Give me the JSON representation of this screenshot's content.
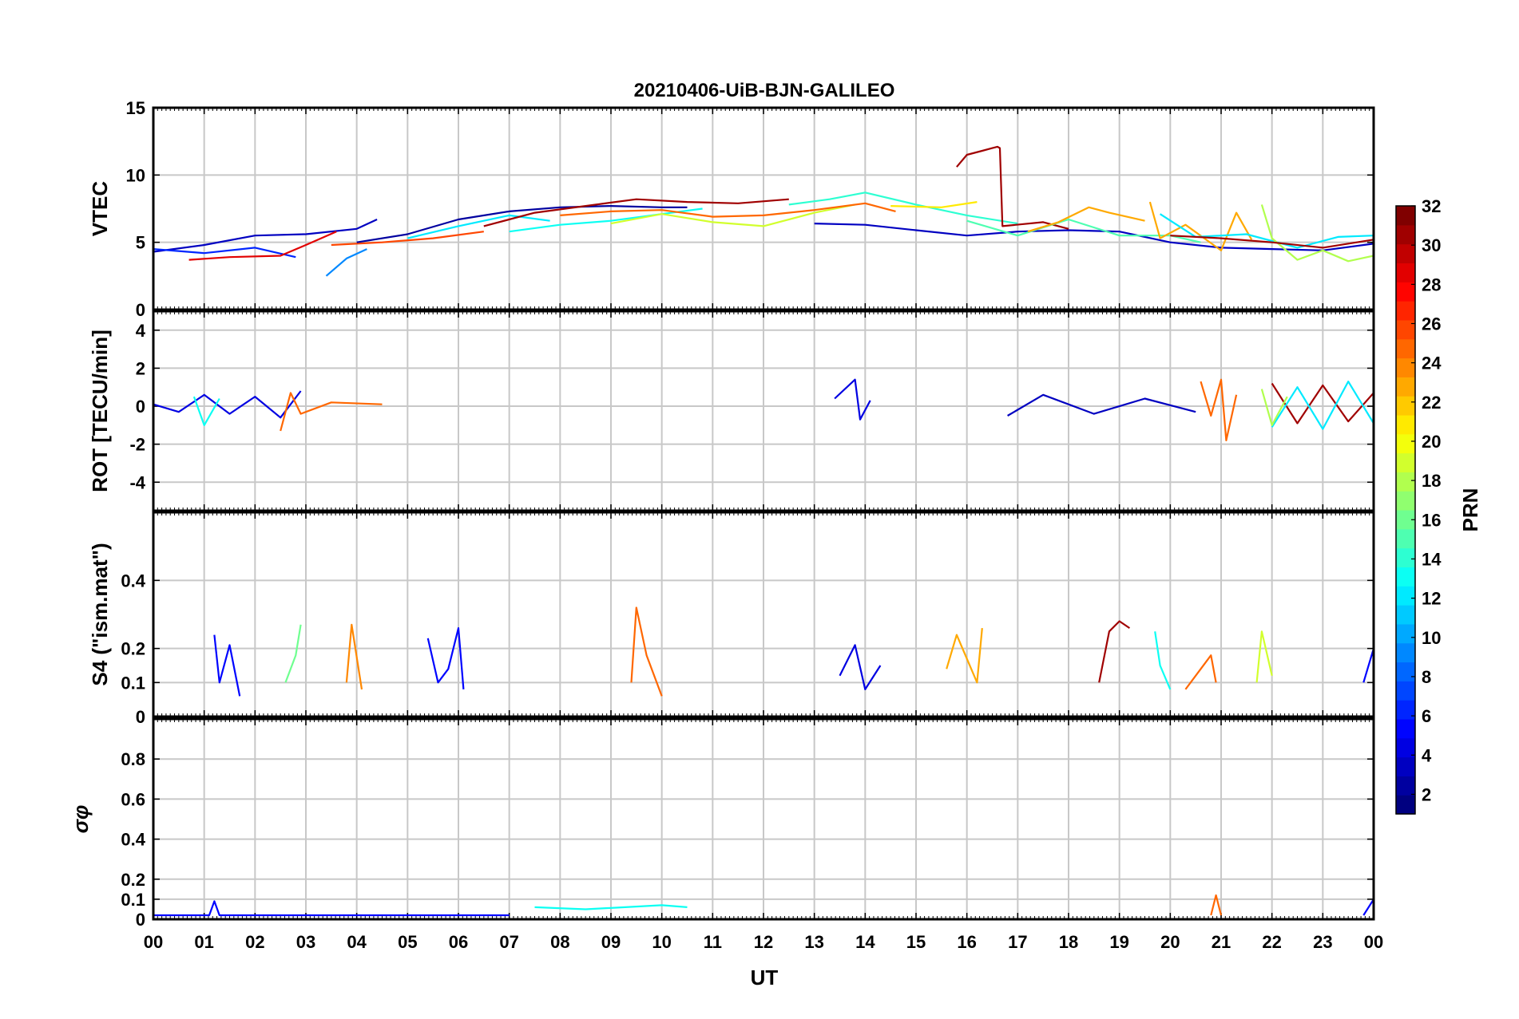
{
  "chart_data": {
    "type": "line",
    "title": "20210406-UiB-BJN-GALILEO",
    "xlabel": "UT",
    "x_tick_labels": [
      "00",
      "01",
      "02",
      "03",
      "04",
      "05",
      "06",
      "07",
      "08",
      "09",
      "10",
      "11",
      "12",
      "13",
      "14",
      "15",
      "16",
      "17",
      "18",
      "19",
      "20",
      "21",
      "22",
      "23",
      "00"
    ],
    "x_range_hours": [
      0,
      24
    ],
    "grid": true,
    "colormap": "jet",
    "panels": [
      {
        "id": "vtec",
        "ylabel": "VTEC",
        "ylim": [
          0,
          15
        ],
        "y_ticks": [
          0,
          5,
          10,
          15
        ],
        "y_tick_labels": [
          "0",
          "5",
          "10",
          "15"
        ],
        "series": [
          {
            "prn": 3,
            "x": [
              0.0,
              1.0,
              2.0,
              3.0,
              4.0,
              4.4
            ],
            "y": [
              4.3,
              4.8,
              5.5,
              5.6,
              6.0,
              6.7
            ]
          },
          {
            "prn": 6,
            "x": [
              0.0,
              1.0,
              2.0,
              2.8
            ],
            "y": [
              4.5,
              4.2,
              4.6,
              3.9
            ]
          },
          {
            "prn": 9,
            "x": [
              3.4,
              3.8,
              4.2
            ],
            "y": [
              2.5,
              3.8,
              4.5
            ]
          },
          {
            "prn": 29,
            "x": [
              0.7,
              1.5,
              2.5,
              3.0,
              3.6
            ],
            "y": [
              3.7,
              3.9,
              4.0,
              4.8,
              5.8
            ]
          },
          {
            "prn": 26,
            "x": [
              3.5,
              4.5,
              5.5,
              6.5
            ],
            "y": [
              4.8,
              5.0,
              5.3,
              5.8
            ]
          },
          {
            "prn": 2,
            "x": [
              4.0,
              5.0,
              6.0,
              7.0,
              8.0,
              9.0,
              10.0,
              10.5
            ],
            "y": [
              5.0,
              5.6,
              6.7,
              7.3,
              7.6,
              7.7,
              7.6,
              7.6
            ]
          },
          {
            "prn": 12,
            "x": [
              5.0,
              6.0,
              7.0,
              7.8
            ],
            "y": [
              5.3,
              6.2,
              7.0,
              6.6
            ]
          },
          {
            "prn": 31,
            "x": [
              6.5,
              7.5,
              8.5,
              9.5,
              10.5,
              11.5,
              12.5
            ],
            "y": [
              6.2,
              7.2,
              7.7,
              8.2,
              8.0,
              7.9,
              8.2
            ]
          },
          {
            "prn": 13,
            "x": [
              7.0,
              8.0,
              9.0,
              10.0,
              10.8
            ],
            "y": [
              5.8,
              6.3,
              6.6,
              7.1,
              7.5
            ]
          },
          {
            "prn": 19,
            "x": [
              9.0,
              10.0,
              11.0,
              12.0,
              13.0,
              13.8
            ],
            "y": [
              6.4,
              7.1,
              6.5,
              6.2,
              7.2,
              7.8
            ]
          },
          {
            "prn": 25,
            "x": [
              8.0,
              9.0,
              10.0,
              11.0,
              12.0,
              13.0,
              14.0,
              14.6
            ],
            "y": [
              7.0,
              7.3,
              7.4,
              6.9,
              7.0,
              7.4,
              7.9,
              7.3
            ]
          },
          {
            "prn": 14,
            "x": [
              12.5,
              13.3,
              14.0,
              15.0,
              16.0,
              17.0
            ],
            "y": [
              7.8,
              8.2,
              8.7,
              7.8,
              7.0,
              6.4
            ]
          },
          {
            "prn": 21,
            "x": [
              14.5,
              15.5,
              16.2
            ],
            "y": [
              7.7,
              7.6,
              8.0
            ]
          },
          {
            "prn": 3,
            "x": [
              13.0,
              14.0,
              15.0,
              16.0,
              17.0,
              18.0,
              19.0,
              20.0,
              21.0,
              22.0,
              23.0,
              24.0
            ],
            "y": [
              6.4,
              6.3,
              5.9,
              5.5,
              5.8,
              5.9,
              5.8,
              5.0,
              4.6,
              4.5,
              4.4,
              4.9
            ]
          },
          {
            "prn": 31,
            "x": [
              15.8,
              16.0,
              16.3,
              16.5,
              16.6,
              16.65,
              16.7,
              17.5,
              18.0
            ],
            "y": [
              10.6,
              11.5,
              11.8,
              12.0,
              12.1,
              12.0,
              6.2,
              6.5,
              6.0
            ]
          },
          {
            "prn": 15,
            "x": [
              16.0,
              17.0,
              18.0,
              19.0,
              20.0,
              20.6
            ],
            "y": [
              6.6,
              5.5,
              6.7,
              5.5,
              5.5,
              5.0
            ]
          },
          {
            "prn": 23,
            "x": [
              17.2,
              17.8,
              18.4,
              18.8,
              19.5
            ],
            "y": [
              5.8,
              6.5,
              7.6,
              7.2,
              6.6
            ]
          },
          {
            "prn": 23,
            "x": [
              19.6,
              19.8,
              20.3,
              21.0,
              21.3,
              21.6
            ],
            "y": [
              8.0,
              5.3,
              6.3,
              4.4,
              7.2,
              5.2
            ]
          },
          {
            "prn": 12,
            "x": [
              19.8,
              20.5,
              21.5,
              22.5,
              23.3,
              24.0
            ],
            "y": [
              7.1,
              5.4,
              5.6,
              4.6,
              5.4,
              5.5
            ]
          },
          {
            "prn": 18,
            "x": [
              21.8,
              22.0,
              22.5,
              23.0,
              23.5,
              24.0
            ],
            "y": [
              7.8,
              5.3,
              3.7,
              4.4,
              3.6,
              4.0
            ]
          },
          {
            "prn": 31,
            "x": [
              20.0,
              21.0,
              22.0,
              23.0,
              24.0
            ],
            "y": [
              5.5,
              5.3,
              5.0,
              4.6,
              5.2
            ]
          }
        ]
      },
      {
        "id": "rot",
        "ylabel": "ROT [TECU/min]",
        "ylim": [
          -5.5,
          5
        ],
        "y_ticks": [
          -4,
          -2,
          0,
          2,
          4
        ],
        "y_tick_labels": [
          "-4",
          "-2",
          "0",
          "2",
          "4"
        ],
        "series": [
          {
            "prn": 4,
            "x": [
              0.0,
              0.5,
              1.0,
              1.5,
              2.0,
              2.5,
              2.9
            ],
            "y": [
              0.1,
              -0.3,
              0.6,
              -0.4,
              0.5,
              -0.6,
              0.8
            ]
          },
          {
            "prn": 25,
            "x": [
              2.5,
              2.7,
              2.9,
              3.5,
              4.5
            ],
            "y": [
              -1.3,
              0.7,
              -0.4,
              0.2,
              0.1
            ]
          },
          {
            "prn": 13,
            "x": [
              0.8,
              1.0,
              1.3
            ],
            "y": [
              0.5,
              -1.0,
              0.4
            ]
          },
          {
            "prn": 4,
            "x": [
              13.4,
              13.8,
              13.9,
              14.1
            ],
            "y": [
              0.4,
              1.4,
              -0.7,
              0.3
            ]
          },
          {
            "prn": 3,
            "x": [
              16.8,
              17.5,
              18.5,
              19.5,
              20.5
            ],
            "y": [
              -0.5,
              0.6,
              -0.4,
              0.4,
              -0.3
            ]
          },
          {
            "prn": 25,
            "x": [
              20.6,
              20.8,
              21.0,
              21.1,
              21.3
            ],
            "y": [
              1.3,
              -0.5,
              1.4,
              -1.8,
              0.6
            ]
          },
          {
            "prn": 31,
            "x": [
              22.0,
              22.5,
              23.0,
              23.5,
              24.0
            ],
            "y": [
              1.2,
              -0.9,
              1.1,
              -0.8,
              0.7
            ]
          },
          {
            "prn": 12,
            "x": [
              22.0,
              22.5,
              23.0,
              23.5,
              24.0
            ],
            "y": [
              -1.1,
              1.0,
              -1.2,
              1.3,
              -0.9
            ]
          },
          {
            "prn": 18,
            "x": [
              21.8,
              22.0,
              22.3
            ],
            "y": [
              0.9,
              -1.0,
              0.5
            ]
          }
        ]
      },
      {
        "id": "s4",
        "ylabel": "S4 (\"ism.mat\")",
        "ylim": [
          0,
          0.6
        ],
        "y_ticks": [
          0,
          0.1,
          0.2,
          0.4
        ],
        "y_tick_labels": [
          "0",
          "0.1",
          "0.2",
          "0.4"
        ],
        "series": [
          {
            "prn": 5,
            "x": [
              1.2,
              1.3,
              1.5,
              1.7
            ],
            "y": [
              0.24,
              0.1,
              0.21,
              0.06
            ]
          },
          {
            "prn": 16,
            "x": [
              2.6,
              2.8,
              2.9
            ],
            "y": [
              0.1,
              0.18,
              0.27
            ]
          },
          {
            "prn": 24,
            "x": [
              3.8,
              3.9,
              4.1
            ],
            "y": [
              0.1,
              0.27,
              0.08
            ]
          },
          {
            "prn": 5,
            "x": [
              5.4,
              5.6,
              5.8,
              6.0,
              6.1
            ],
            "y": [
              0.23,
              0.1,
              0.14,
              0.26,
              0.08
            ]
          },
          {
            "prn": 25,
            "x": [
              9.4,
              9.5,
              9.7,
              10.0
            ],
            "y": [
              0.1,
              0.32,
              0.18,
              0.06
            ]
          },
          {
            "prn": 4,
            "x": [
              13.5,
              13.8,
              14.0,
              14.3
            ],
            "y": [
              0.12,
              0.21,
              0.08,
              0.15
            ]
          },
          {
            "prn": 23,
            "x": [
              15.6,
              15.8,
              16.2,
              16.3
            ],
            "y": [
              0.14,
              0.24,
              0.1,
              0.26
            ]
          },
          {
            "prn": 31,
            "x": [
              18.6,
              18.8,
              19.0,
              19.2
            ],
            "y": [
              0.1,
              0.25,
              0.28,
              0.26
            ]
          },
          {
            "prn": 13,
            "x": [
              19.7,
              19.8,
              20.0
            ],
            "y": [
              0.25,
              0.15,
              0.08
            ]
          },
          {
            "prn": 25,
            "x": [
              20.3,
              20.6,
              20.8,
              20.9
            ],
            "y": [
              0.08,
              0.14,
              0.18,
              0.1
            ]
          },
          {
            "prn": 19,
            "x": [
              21.7,
              21.8,
              22.0
            ],
            "y": [
              0.1,
              0.25,
              0.12
            ]
          },
          {
            "prn": 5,
            "x": [
              23.8,
              24.0
            ],
            "y": [
              0.1,
              0.2
            ]
          }
        ]
      },
      {
        "id": "sigma_phi",
        "ylabel": "σφ",
        "ylim": [
          0,
          1
        ],
        "y_ticks": [
          0,
          0.1,
          0.2,
          0.4,
          0.6,
          0.8
        ],
        "y_tick_labels": [
          "0",
          "0.1",
          "0.2",
          "0.4",
          "0.6",
          "0.8"
        ],
        "series": [
          {
            "prn": 5,
            "x": [
              0.0,
              1.1,
              1.2,
              1.3,
              3.0,
              7.0
            ],
            "y": [
              0.02,
              0.02,
              0.09,
              0.02,
              0.02,
              0.02
            ]
          },
          {
            "prn": 13,
            "x": [
              7.5,
              8.5,
              10.0,
              10.5
            ],
            "y": [
              0.06,
              0.05,
              0.07,
              0.06
            ]
          },
          {
            "prn": 25,
            "x": [
              20.8,
              20.9,
              21.0
            ],
            "y": [
              0.02,
              0.12,
              0.02
            ]
          },
          {
            "prn": 5,
            "x": [
              23.8,
              24.0
            ],
            "y": [
              0.02,
              0.1
            ]
          }
        ]
      }
    ],
    "colorbar": {
      "label": "PRN",
      "range": [
        1,
        32
      ],
      "ticks": [
        2,
        4,
        6,
        8,
        10,
        12,
        14,
        16,
        18,
        20,
        22,
        24,
        26,
        28,
        30,
        32
      ],
      "tick_labels": [
        "2",
        "4",
        "6",
        "8",
        "10",
        "12",
        "14",
        "16",
        "18",
        "20",
        "22",
        "24",
        "26",
        "28",
        "30",
        "32"
      ]
    }
  }
}
